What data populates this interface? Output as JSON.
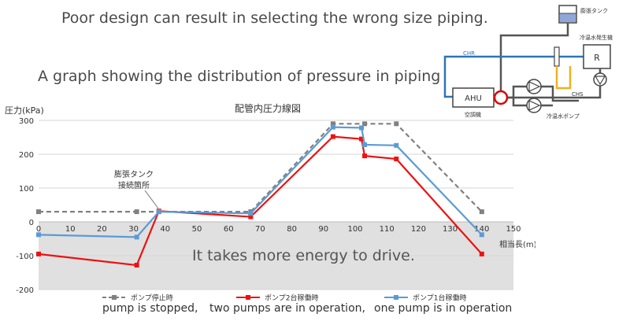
{
  "slide": {
    "title": "Poor design can result in selecting the wrong size piping.",
    "subtitle": "A graph showing the distribution of pressure in piping",
    "energy_note": "It takes more energy to drive.",
    "captions": [
      "pump is stopped,",
      "two pumps are in operation,",
      "one pump is in operation"
    ]
  },
  "diagram": {
    "labels": {
      "tank": "膨張タンク",
      "chiller": "冷温水発生機",
      "chiller_symbol": "R",
      "chr": "CHR",
      "chs": "CHS",
      "ahu": "AHU",
      "ahu_caption": "空調機",
      "pump_caption": "冷温水ポンプ"
    },
    "colors": {
      "chr": "#2e75b6",
      "chs": "#808080",
      "bypass": "#f0b020",
      "connection": "#e00000"
    }
  },
  "chart_data": {
    "type": "line",
    "title": "配管内圧力線図",
    "ylabel": "圧力(kPa)",
    "xlabel": "相当長(m)",
    "xlim": [
      0,
      150
    ],
    "ylim": [
      -200,
      300
    ],
    "xticks": [
      0,
      10,
      20,
      30,
      40,
      50,
      60,
      70,
      80,
      90,
      100,
      110,
      120,
      130,
      140,
      150
    ],
    "yticks": [
      -200,
      -100,
      0,
      100,
      200,
      300
    ],
    "legend_position": "bottom",
    "annotation": {
      "text": [
        "膨張タンク",
        "接続箇所"
      ],
      "x": 38,
      "y": 30
    },
    "shaded_region": {
      "y_from": -200,
      "y_to": 0,
      "color": "#e0e0e0"
    },
    "series": [
      {
        "name": "ポンプ停止時",
        "color": "#808080",
        "dashed": true,
        "x": [
          0,
          31,
          38,
          67,
          93,
          103,
          113,
          140
        ],
        "y": [
          30,
          30,
          30,
          30,
          290,
          290,
          290,
          30
        ]
      },
      {
        "name": "ポンプ2台稼働時",
        "color": "#ee1111",
        "dashed": false,
        "x": [
          0,
          31,
          38,
          67,
          93,
          102,
          103,
          113,
          140
        ],
        "y": [
          -95,
          -128,
          32,
          15,
          252,
          245,
          195,
          186,
          -95
        ]
      },
      {
        "name": "ポンプ1台稼働時",
        "color": "#5b9bd5",
        "dashed": false,
        "x": [
          0,
          31,
          38,
          67,
          93,
          102,
          103,
          113,
          140
        ],
        "y": [
          -38,
          -45,
          30,
          25,
          280,
          278,
          228,
          226,
          -38
        ]
      }
    ]
  }
}
